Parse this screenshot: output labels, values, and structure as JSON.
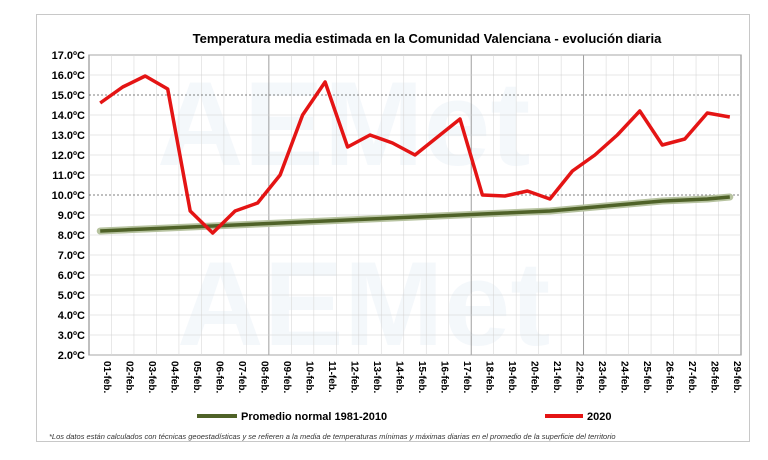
{
  "chart_data": {
    "type": "line",
    "title": "Temperatura media estimada en la Comunidad Valenciana - evolución diaria",
    "categories": [
      "01-feb.",
      "02-feb.",
      "03-feb.",
      "04-feb.",
      "05-feb.",
      "06-feb.",
      "07-feb.",
      "08-feb.",
      "09-feb.",
      "10-feb.",
      "11-feb.",
      "12-feb.",
      "13-feb.",
      "14-feb.",
      "15-feb.",
      "16-feb.",
      "17-feb.",
      "18-feb.",
      "19-feb.",
      "20-feb.",
      "21-feb.",
      "22-feb.",
      "23-feb.",
      "24-feb.",
      "25-feb.",
      "26-feb.",
      "27-feb.",
      "28-feb.",
      "29-feb."
    ],
    "y_ticks": [
      "2.0ºC",
      "3.0ºC",
      "4.0ºC",
      "5.0ºC",
      "6.0ºC",
      "7.0ºC",
      "8.0ºC",
      "9.0ºC",
      "10.0ºC",
      "11.0ºC",
      "12.0ºC",
      "13.0ºC",
      "14.0ºC",
      "15.0ºC",
      "16.0ºC",
      "17.0ºC"
    ],
    "ylim": [
      2,
      17
    ],
    "grid": true,
    "legend_position": "bottom",
    "series": [
      {
        "name": "Promedio normal 1981-2010",
        "color": "#4f6228",
        "values": [
          8.2,
          8.25,
          8.3,
          8.35,
          8.4,
          8.45,
          8.5,
          8.55,
          8.6,
          8.65,
          8.7,
          8.75,
          8.8,
          8.85,
          8.9,
          8.95,
          9.0,
          9.05,
          9.1,
          9.15,
          9.2,
          9.3,
          9.4,
          9.5,
          9.6,
          9.7,
          9.75,
          9.8,
          9.9
        ]
      },
      {
        "name": "2020",
        "color": "#e41414",
        "values": [
          14.6,
          15.4,
          15.95,
          15.3,
          9.2,
          8.1,
          9.2,
          9.6,
          11.0,
          14.0,
          15.65,
          12.4,
          13.0,
          12.6,
          12.0,
          12.9,
          13.8,
          10.0,
          9.95,
          10.2,
          9.8,
          11.2,
          12.0,
          13.0,
          14.2,
          12.5,
          12.8,
          14.1,
          13.9
        ]
      }
    ],
    "footnote": "*Los datos están calculados con técnicas geoestadísticas y se refieren a la media de temperaturas mínimas y máximas diarias en el promedio de la superficie del territorio"
  }
}
